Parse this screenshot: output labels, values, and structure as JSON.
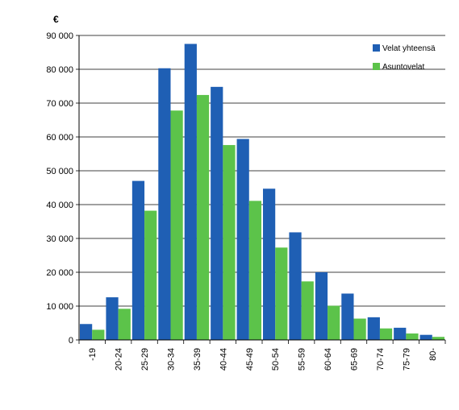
{
  "chart_data": {
    "type": "bar",
    "unit_label": "€",
    "categories": [
      "-19",
      "20-24",
      "25-29",
      "30-34",
      "35-39",
      "40-44",
      "45-49",
      "50-54",
      "55-59",
      "60-64",
      "65-69",
      "70-74",
      "75-79",
      "80-"
    ],
    "series": [
      {
        "name": "Velat yhteensä",
        "color": "#1f5fb4",
        "values": [
          4700,
          12600,
          47000,
          80300,
          87500,
          74800,
          59400,
          44700,
          31800,
          20000,
          13700,
          6700,
          3600,
          1500
        ]
      },
      {
        "name": "Asuntovelat",
        "color": "#5cc34a",
        "values": [
          3000,
          9200,
          38200,
          67800,
          72400,
          57600,
          41100,
          27300,
          17300,
          10100,
          6300,
          3400,
          1900,
          900
        ]
      }
    ],
    "ylim": [
      0,
      90000
    ],
    "yticks": [
      0,
      10000,
      20000,
      30000,
      40000,
      50000,
      60000,
      70000,
      80000,
      90000
    ],
    "ytick_labels": [
      "0",
      "10 000",
      "20 000",
      "30 000",
      "40 000",
      "50 000",
      "60 000",
      "70 000",
      "80 000",
      "90 000"
    ],
    "grid": true,
    "legend_position": "top-right"
  }
}
